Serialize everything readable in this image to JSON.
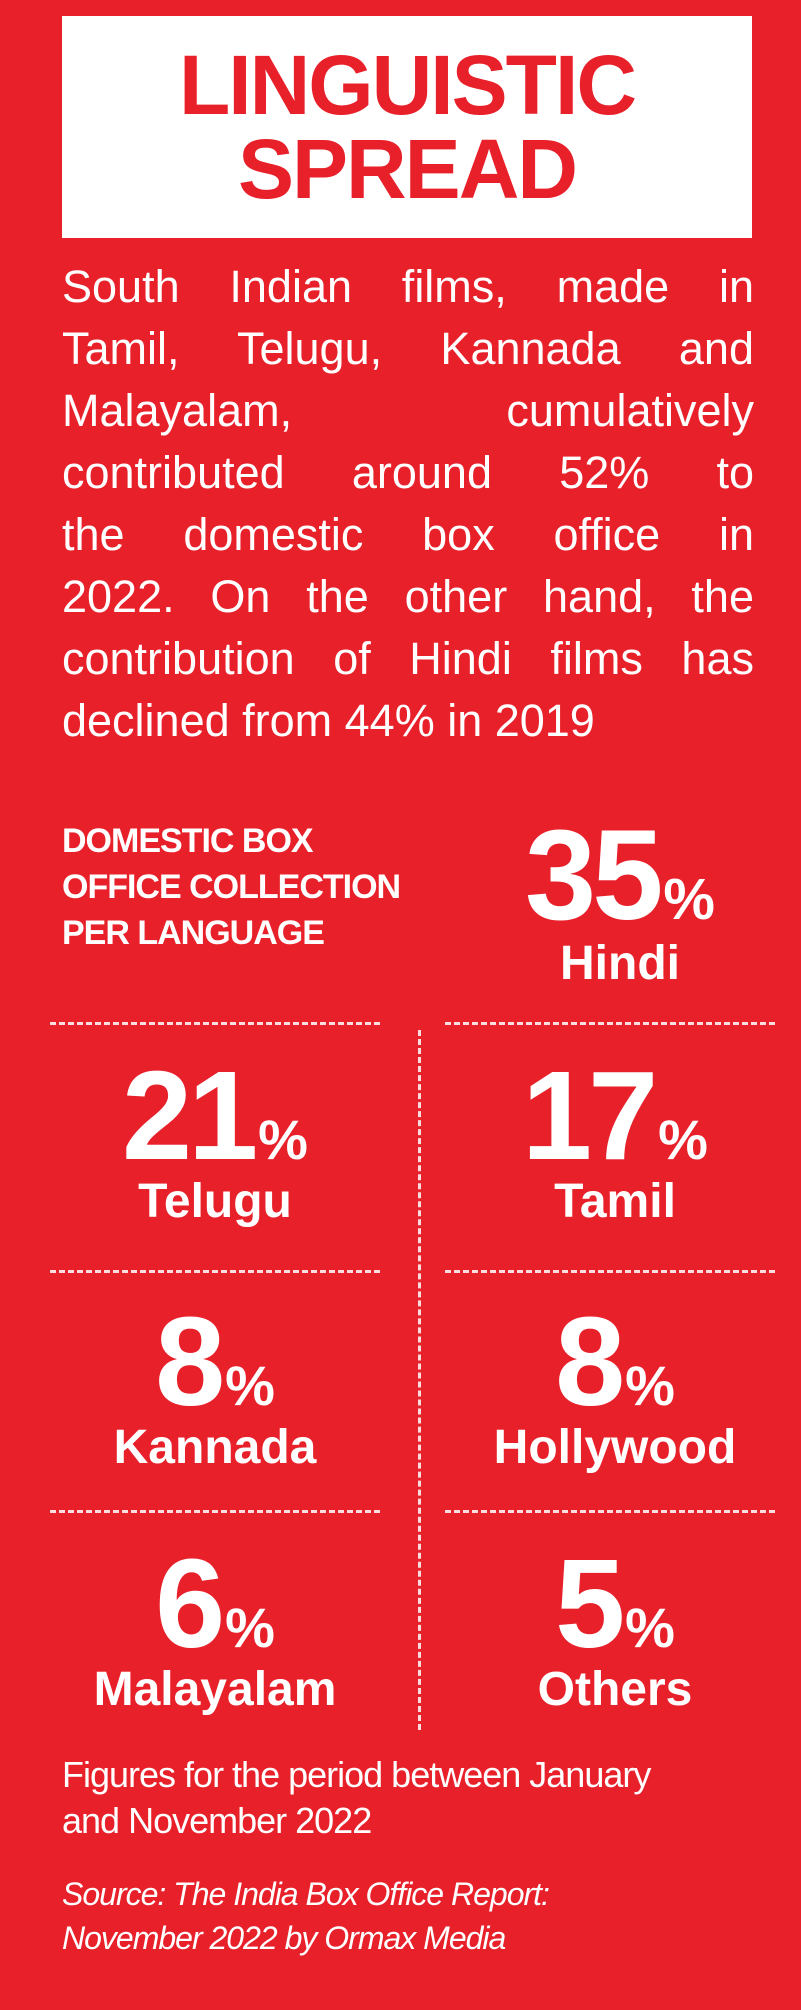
{
  "title": {
    "line1": "LINGUISTIC",
    "line2": "SPREAD"
  },
  "intro": {
    "lines": [
      "South Indian films, made in",
      "Tamil, Telugu, Kannada and",
      "Malayalam,  cumulatively",
      "contributed around 52% to",
      "the domestic box office in",
      "2022. On the other hand, the",
      "contribution of Hindi films has",
      "declined from 44% in 2019"
    ]
  },
  "heading": {
    "line1": "DOMESTIC BOX",
    "line2": "OFFICE COLLECTION",
    "line3": "PER LANGUAGE"
  },
  "stats": [
    {
      "value": "35",
      "unit": "%",
      "label": "Hindi"
    },
    {
      "value": "21",
      "unit": "%",
      "label": "Telugu"
    },
    {
      "value": "17",
      "unit": "%",
      "label": "Tamil"
    },
    {
      "value": "8",
      "unit": "%",
      "label": "Kannada"
    },
    {
      "value": "8",
      "unit": "%",
      "label": "Hollywood"
    },
    {
      "value": "6",
      "unit": "%",
      "label": "Malayalam"
    },
    {
      "value": "5",
      "unit": "%",
      "label": "Others"
    }
  ],
  "note": {
    "line1": "Figures for the period between January",
    "line2": "and November 2022"
  },
  "source": {
    "line1": "Source: The India Box Office Report:",
    "line2": "November 2022 by Ormax Media"
  },
  "colors": {
    "background": "#e8202a",
    "text": "#ffffff",
    "title_box": "#ffffff"
  }
}
